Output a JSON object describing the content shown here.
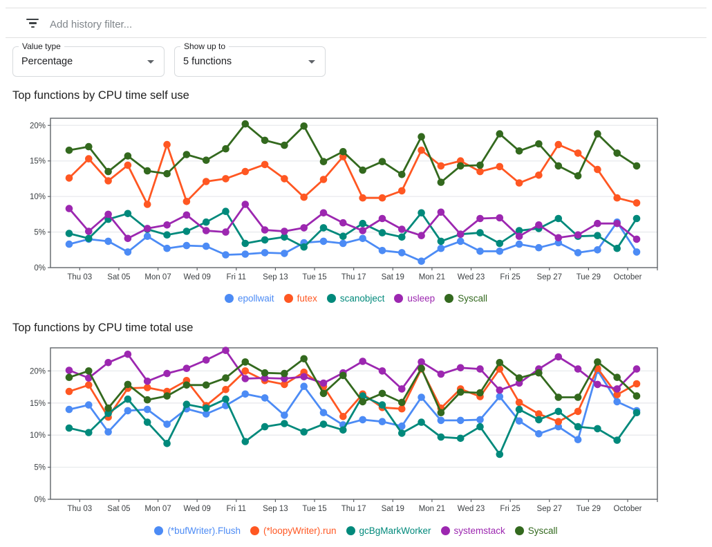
{
  "filter_bar": {
    "icon": "filter-list-icon",
    "placeholder": "Add history filter..."
  },
  "controls": [
    {
      "label": "Value type",
      "value": "Percentage"
    },
    {
      "label": "Show up to",
      "value": "5 functions"
    }
  ],
  "colors": {
    "blue": "#4C8BF5",
    "orange": "#FF5722",
    "teal": "#00897B",
    "purple": "#9C27B0",
    "green": "#33691E",
    "grid": "#e8eaed",
    "plot_border": "#5f6368",
    "tick_text": "#3c4043"
  },
  "chart_data": [
    {
      "type": "line",
      "title": "Top functions by CPU time self use",
      "grid": true,
      "legend_position": "bottom",
      "n_points": 30,
      "x_tick_labels": [
        "Thu 03",
        "Sat 05",
        "Mon 07",
        "Wed 09",
        "Fri 11",
        "Sep 13",
        "Tue 15",
        "Thu 17",
        "Sat 19",
        "Mon 21",
        "Wed 23",
        "Fri 25",
        "Sep 27",
        "Tue 29",
        "October"
      ],
      "x_tick_point_indices": [
        1,
        3,
        5,
        7,
        9,
        11,
        13,
        15,
        17,
        19,
        21,
        23,
        25,
        27,
        29
      ],
      "y_tick_labels": [
        "0%",
        "5%",
        "10%",
        "15%",
        "20%"
      ],
      "y_ticks": [
        0,
        5,
        10,
        15,
        20
      ],
      "ylim": [
        0,
        21
      ],
      "series": [
        {
          "name": "epollwait",
          "color": "#4C8BF5",
          "values": [
            3.3,
            4.0,
            3.7,
            2.2,
            4.4,
            2.7,
            3.1,
            3.0,
            1.8,
            1.9,
            2.1,
            2.0,
            3.5,
            3.7,
            3.4,
            4.1,
            2.4,
            2.1,
            0.9,
            2.7,
            3.7,
            2.3,
            2.3,
            3.3,
            2.8,
            3.5,
            2.1,
            2.5,
            6.4,
            2.2
          ]
        },
        {
          "name": "futex",
          "color": "#FF5722",
          "values": [
            12.6,
            15.3,
            12.2,
            14.4,
            8.9,
            17.3,
            9.3,
            12.1,
            12.5,
            13.5,
            14.5,
            12.5,
            9.9,
            12.4,
            15.6,
            9.8,
            9.8,
            10.8,
            16.5,
            14.3,
            15.0,
            13.5,
            14.2,
            11.9,
            13.0,
            17.3,
            16.1,
            13.8,
            9.8,
            9.1
          ]
        },
        {
          "name": "scanobject",
          "color": "#00897B",
          "values": [
            4.8,
            4.1,
            6.8,
            7.6,
            5.4,
            4.6,
            5.1,
            6.4,
            7.9,
            3.4,
            3.9,
            4.3,
            2.9,
            5.6,
            4.4,
            6.2,
            4.9,
            4.3,
            7.7,
            3.7,
            4.7,
            4.9,
            3.4,
            5.2,
            5.5,
            6.9,
            4.4,
            4.5,
            2.7,
            6.9
          ]
        },
        {
          "name": "usleep",
          "color": "#9C27B0",
          "values": [
            8.3,
            5.1,
            7.5,
            4.1,
            5.5,
            6.0,
            7.4,
            5.2,
            5.0,
            8.9,
            5.3,
            5.1,
            5.6,
            7.7,
            6.3,
            5.2,
            6.9,
            5.4,
            4.5,
            7.8,
            4.7,
            6.9,
            7.0,
            4.4,
            6.0,
            4.2,
            4.6,
            6.2,
            6.2,
            4.0
          ]
        },
        {
          "name": "Syscall",
          "color": "#33691E",
          "values": [
            16.5,
            17.0,
            13.5,
            15.7,
            13.6,
            13.2,
            15.9,
            15.1,
            16.7,
            20.2,
            17.9,
            17.2,
            19.9,
            14.9,
            16.3,
            13.7,
            14.9,
            13.1,
            18.4,
            12.0,
            14.3,
            14.4,
            18.8,
            16.4,
            17.4,
            14.3,
            12.9,
            18.8,
            16.1,
            14.3
          ]
        }
      ]
    },
    {
      "type": "line",
      "title": "Top functions by CPU time total use",
      "grid": true,
      "legend_position": "bottom",
      "n_points": 30,
      "x_tick_labels": [
        "Thu 03",
        "Sat 05",
        "Mon 07",
        "Wed 09",
        "Fri 11",
        "Sep 13",
        "Tue 15",
        "Thu 17",
        "Sat 19",
        "Mon 21",
        "Wed 23",
        "Fri 25",
        "Sep 27",
        "Tue 29",
        "October"
      ],
      "x_tick_point_indices": [
        1,
        3,
        5,
        7,
        9,
        11,
        13,
        15,
        17,
        19,
        21,
        23,
        25,
        27,
        29
      ],
      "y_tick_labels": [
        "0%",
        "5%",
        "10%",
        "15%",
        "20%"
      ],
      "y_ticks": [
        0,
        5,
        10,
        15,
        20
      ],
      "ylim": [
        0,
        23.6
      ],
      "series": [
        {
          "name": "(*bufWriter).Flush",
          "color": "#4C8BF5",
          "values": [
            14.0,
            14.7,
            10.5,
            13.8,
            14.0,
            11.7,
            14.1,
            13.3,
            14.6,
            16.4,
            15.8,
            13.1,
            17.6,
            13.5,
            11.6,
            12.4,
            12.1,
            11.4,
            15.9,
            12.3,
            12.3,
            12.4,
            16.0,
            12.2,
            10.2,
            11.3,
            9.3,
            20.1,
            15.2,
            13.8
          ]
        },
        {
          "name": "(*loopyWriter).run",
          "color": "#FF5722",
          "values": [
            16.8,
            17.8,
            12.8,
            17.3,
            17.4,
            16.8,
            18.5,
            14.6,
            17.1,
            20.0,
            18.5,
            17.9,
            19.8,
            17.6,
            12.9,
            16.4,
            14.3,
            14.1,
            20.3,
            14.2,
            17.2,
            16.0,
            20.3,
            15.1,
            13.3,
            12.1,
            13.7,
            20.4,
            16.3,
            18.0
          ]
        },
        {
          "name": "gcBgMarkWorker",
          "color": "#00897B",
          "values": [
            11.1,
            10.4,
            13.4,
            15.6,
            12.0,
            8.7,
            14.8,
            14.2,
            15.6,
            9.0,
            11.3,
            11.8,
            10.5,
            11.7,
            10.8,
            16.1,
            14.7,
            10.3,
            12.0,
            9.7,
            9.5,
            11.3,
            7.0,
            14.0,
            12.4,
            13.7,
            11.3,
            11.0,
            9.2,
            13.5
          ]
        },
        {
          "name": "systemstack",
          "color": "#9C27B0",
          "values": [
            20.1,
            18.9,
            21.3,
            22.6,
            18.4,
            19.6,
            20.4,
            21.7,
            23.2,
            18.8,
            18.9,
            18.8,
            19.1,
            18.1,
            19.7,
            21.5,
            20.0,
            17.2,
            21.4,
            19.5,
            20.5,
            20.3,
            17.0,
            18.1,
            20.3,
            22.2,
            20.3,
            17.9,
            17.2,
            20.3
          ]
        },
        {
          "name": "Syscall",
          "color": "#33691E",
          "values": [
            19.0,
            20.0,
            14.2,
            17.9,
            15.5,
            16.1,
            17.8,
            17.8,
            18.9,
            21.4,
            19.7,
            19.6,
            21.9,
            16.5,
            19.3,
            15.2,
            16.5,
            15.1,
            20.4,
            13.5,
            16.7,
            16.6,
            21.3,
            18.9,
            19.7,
            15.9,
            15.9,
            21.4,
            19.0,
            16.1
          ]
        }
      ]
    }
  ]
}
